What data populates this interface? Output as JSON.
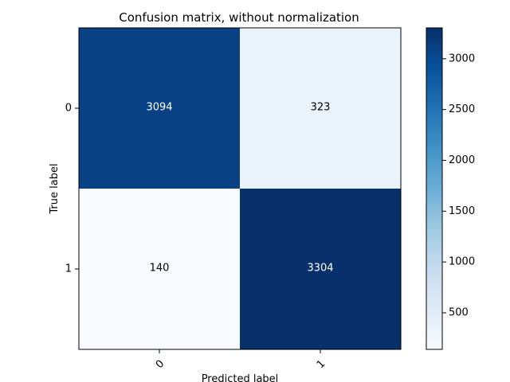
{
  "chart_data": {
    "type": "heatmap",
    "title": "Confusion matrix, without normalization",
    "xlabel": "Predicted label",
    "ylabel": "True label",
    "x_categories": [
      "0",
      "1"
    ],
    "y_categories": [
      "0",
      "1"
    ],
    "matrix": [
      [
        3094,
        323
      ],
      [
        140,
        3304
      ]
    ],
    "colormap": "Blues",
    "color_low": "#f7fbff",
    "color_high": "#08306b",
    "colorbar": {
      "range": [
        140,
        3304
      ],
      "ticks": [
        "500",
        "1000",
        "1500",
        "2000",
        "2500",
        "3000"
      ]
    },
    "grid": false,
    "legend": "none"
  }
}
